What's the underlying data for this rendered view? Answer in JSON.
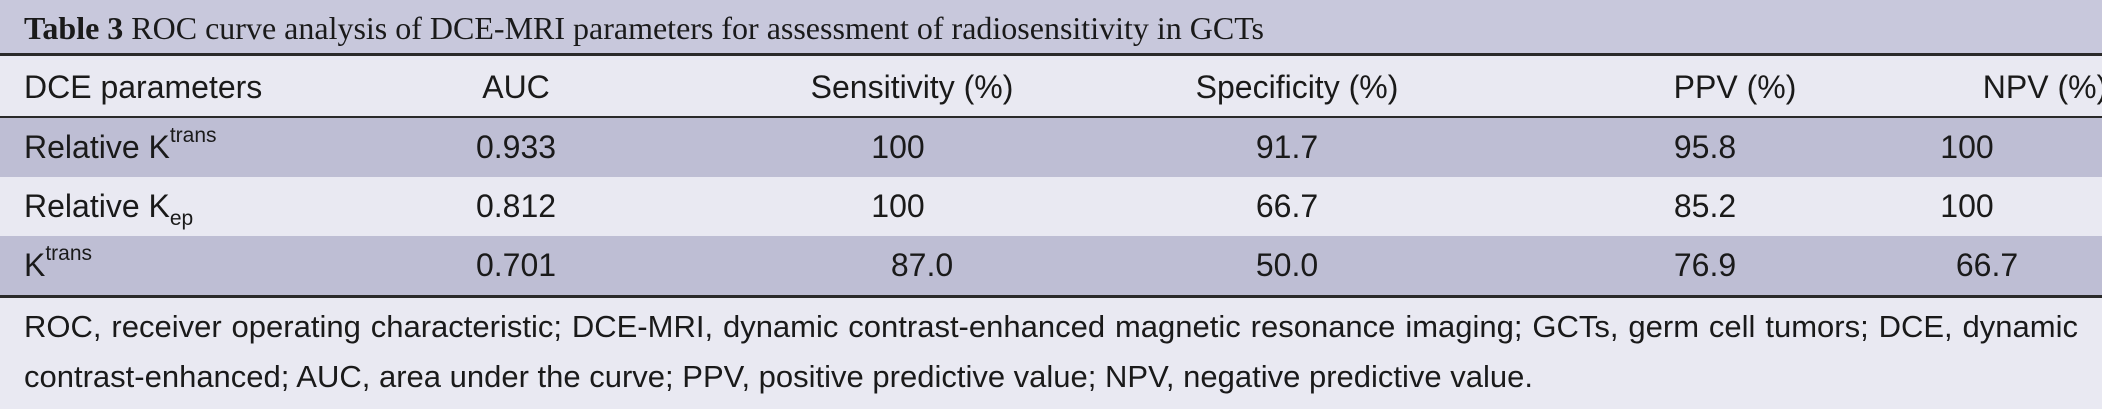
{
  "caption": {
    "label": "Table 3",
    "title": "ROC curve analysis of DCE-MRI parameters for assessment of radiosensitivity in GCTs"
  },
  "headers": [
    "DCE parameters",
    "AUC",
    "Sensitivity (%)",
    "Specificity (%)",
    "PPV (%)",
    "NPV (%)"
  ],
  "rows": [
    {
      "param_base": "Relative K",
      "param_script": "trans",
      "script_type": "sup",
      "auc": "0.933",
      "sensitivity": "100",
      "specificity": "91.7",
      "ppv": "95.8",
      "npv": "100"
    },
    {
      "param_base": "Relative K",
      "param_script": "ep",
      "script_type": "sub",
      "auc": "0.812",
      "sensitivity": "100",
      "specificity": "66.7",
      "ppv": "85.2",
      "npv": "100"
    },
    {
      "param_base": "K",
      "param_script": "trans",
      "script_type": "sup",
      "auc": "0.701",
      "sensitivity": "87.0",
      "specificity": "50.0",
      "ppv": "76.9",
      "npv": "66.7"
    }
  ],
  "footnote": "ROC, receiver operating characteristic; DCE-MRI, dynamic contrast-enhanced magnetic resonance imaging; GCTs, germ cell tumors; DCE, dynamic contrast-enhanced; AUC, area under the curve; PPV, positive predictive value; NPV, negative predictive value."
}
